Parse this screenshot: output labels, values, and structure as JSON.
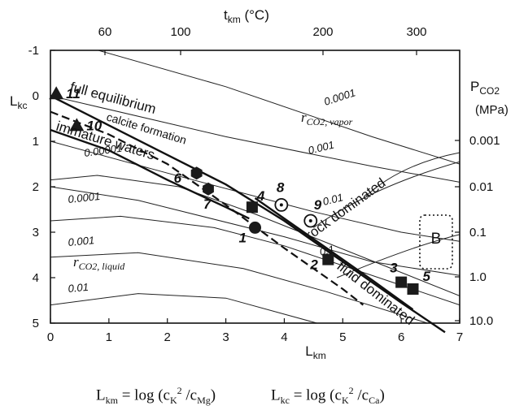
{
  "chart_data": {
    "type": "line",
    "axes": {
      "x_bottom": {
        "label": "L",
        "label_sub": "km",
        "ticks": [
          0,
          1,
          2,
          3,
          4,
          5,
          6,
          7
        ],
        "range": [
          0,
          7
        ]
      },
      "y_left": {
        "label": "L",
        "label_sub": "kc",
        "ticks": [
          -1,
          0,
          1,
          2,
          3,
          4,
          5
        ],
        "range": [
          -1,
          5
        ],
        "inverted": true
      },
      "x_top": {
        "label": "t",
        "label_sub": "km",
        "unit": " (°C)",
        "ticks": [
          60,
          100,
          200,
          300
        ],
        "tick_label_text": [
          "60",
          "100",
          "200",
          "300"
        ]
      },
      "y_right": {
        "label": "P",
        "label_sub": "CO2",
        "unit": "(MPa)",
        "ticks": [
          0.001,
          0.01,
          0.1,
          1.0,
          10.0
        ],
        "tick_label_text": [
          "0.001",
          "0.01",
          "0.1",
          "1.0",
          "10.0"
        ],
        "log_scale": true
      }
    },
    "family_labels": [
      {
        "text": "r",
        "sub": "CO2, vapor"
      },
      {
        "text": "r",
        "sub": "CO2, liquid"
      }
    ],
    "contour_labels": [
      "0.0001",
      "0.001",
      "0.01",
      "0.1",
      "0.00001",
      "0.0001",
      "0.001",
      "0.01"
    ],
    "series": [
      {
        "name": "full equilibrium",
        "style": "solid-thick",
        "x": [
          0.0,
          1.0,
          2.0,
          3.0,
          4.0,
          5.0,
          6.0,
          6.75
        ],
        "y": [
          0.0,
          0.65,
          1.3,
          1.95,
          2.75,
          3.65,
          4.55,
          5.2
        ]
      },
      {
        "name": "calcite formation",
        "style": "dashed",
        "x": [
          0.0,
          1.0,
          2.0,
          3.0,
          4.0,
          5.0,
          5.35
        ],
        "y": [
          0.35,
          0.85,
          1.5,
          2.4,
          3.35,
          4.25,
          4.6
        ]
      },
      {
        "name": "immature waters",
        "style": "solid-thick",
        "x": [
          0.0,
          1.0,
          2.0,
          3.0,
          3.4
        ],
        "y": [
          0.75,
          1.2,
          1.85,
          2.45,
          2.7
        ]
      },
      {
        "name": "rock dominated",
        "style": "solid-thick",
        "x": [
          3.5,
          4.5,
          5.5,
          6.2
        ],
        "y": [
          2.25,
          3.15,
          4.05,
          4.7
        ]
      }
    ],
    "annotations": [
      "full equilibrium",
      "calcite formation",
      "immature waters",
      "rock dominated",
      "fluid dominated"
    ],
    "points": [
      {
        "id": "1",
        "marker": "circle",
        "x": 3.5,
        "y": 2.9
      },
      {
        "id": "2",
        "marker": "square",
        "x": 4.75,
        "y": 3.6
      },
      {
        "id": "3",
        "marker": "square",
        "x": 6.0,
        "y": 4.1
      },
      {
        "id": "4",
        "marker": "square",
        "x": 3.45,
        "y": 2.45
      },
      {
        "id": "5",
        "marker": "square",
        "x": 6.2,
        "y": 4.25
      },
      {
        "id": "6",
        "marker": "hexagon",
        "x": 2.5,
        "y": 1.7
      },
      {
        "id": "7",
        "marker": "hexagon",
        "x": 2.7,
        "y": 2.05
      },
      {
        "id": "8",
        "marker": "circle-dot",
        "x": 3.95,
        "y": 2.4
      },
      {
        "id": "9",
        "marker": "circle-dot",
        "x": 4.45,
        "y": 2.75
      },
      {
        "id": "10",
        "marker": "triangle",
        "x": 0.45,
        "y": 0.65
      },
      {
        "id": "11",
        "marker": "triangle",
        "x": 0.1,
        "y": -0.05
      }
    ],
    "box_label": "B",
    "formula_left": {
      "lhs": "L",
      "lhs_sub": "km",
      "rhs": " = log (c",
      "k_sub": "K",
      "sup": "2",
      "mid": " /c",
      "den_sub": "Mg",
      "end": ")"
    },
    "formula_right": {
      "lhs": "L",
      "lhs_sub": "kc",
      "rhs": " = log (c",
      "k_sub": "K",
      "sup": "2",
      "mid": " /c",
      "den_sub": "Ca",
      "end": ")"
    }
  }
}
